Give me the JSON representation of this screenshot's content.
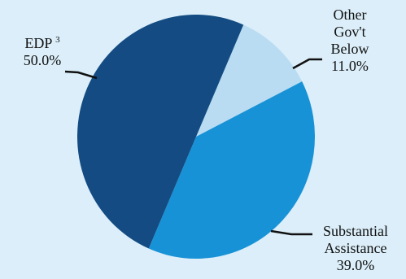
{
  "chart_data": {
    "type": "pie",
    "title": "",
    "slices": [
      {
        "label_lines": [
          "EDP"
        ],
        "footnote": "3",
        "value_label": "50.0%",
        "value": 50.0,
        "color": "#134b82"
      },
      {
        "label_lines": [
          "Other",
          "Gov't",
          "Below"
        ],
        "value_label": "11.0%",
        "value": 11.0,
        "color": "#b9dcf2"
      },
      {
        "label_lines": [
          "Substantial",
          "Assistance"
        ],
        "value_label": "39.0%",
        "value": 39.0,
        "color": "#1892d6"
      }
    ],
    "legend": "none",
    "background": "#dbeef9"
  }
}
